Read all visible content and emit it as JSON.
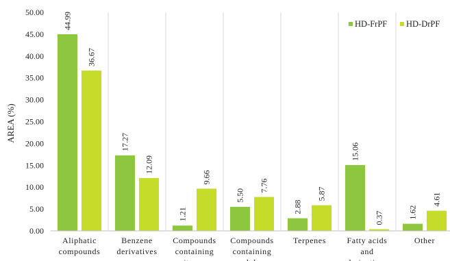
{
  "chart_data": {
    "type": "bar",
    "ylabel": "AREA (%)",
    "xlabel": "",
    "ylim": [
      0,
      50
    ],
    "y_ticks": [
      "0.00",
      "5.00",
      "10.00",
      "15.00",
      "20.00",
      "25.00",
      "30.00",
      "35.00",
      "40.00",
      "45.00",
      "50.00"
    ],
    "categories": [
      [
        "Aliphatic",
        "compounds"
      ],
      [
        "Benzene",
        "derivatives"
      ],
      [
        "Compounds",
        "containing",
        "nitrogen"
      ],
      [
        "Compounds",
        "containing",
        "sulphur"
      ],
      [
        "Terpenes"
      ],
      [
        "Fatty acids",
        "and",
        "derivatives"
      ],
      [
        "Other"
      ]
    ],
    "series": [
      {
        "name": "HD-FrPF",
        "color": "#8dc63f",
        "values": [
          44.99,
          17.27,
          1.21,
          5.5,
          2.88,
          15.06,
          1.62
        ],
        "labels": [
          "44.99",
          "17.27",
          "1.21",
          "5.50",
          "2.88",
          "15.06",
          "1.62"
        ]
      },
      {
        "name": "HD-DrPF",
        "color": "#c5dc2a",
        "values": [
          36.67,
          12.09,
          9.66,
          7.76,
          5.87,
          0.37,
          4.61
        ],
        "labels": [
          "36.67",
          "12.09",
          "9.66",
          "7.76",
          "5.87",
          "0.37",
          "4.61"
        ]
      }
    ],
    "legend_position": "top-right",
    "grid": "vertical category separators"
  }
}
